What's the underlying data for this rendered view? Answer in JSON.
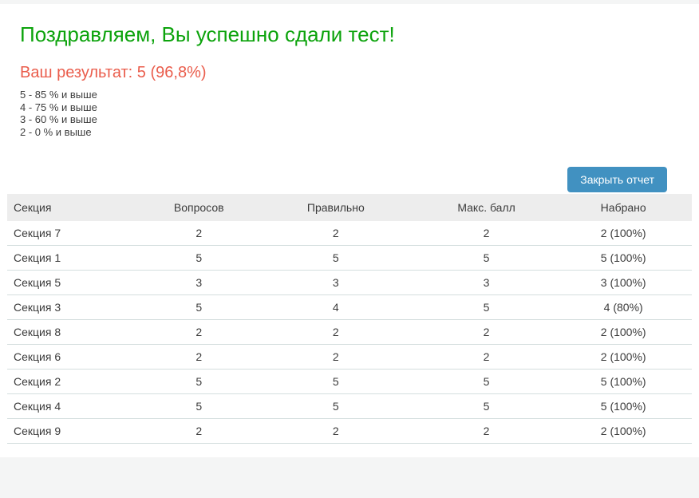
{
  "report": {
    "title": "Поздравляем, Вы успешно сдали тест!",
    "result": "Ваш результат: 5 (96,8%)",
    "grade_scale": [
      "5 - 85 % и выше",
      "4 - 75 % и выше",
      "3 - 60 % и выше",
      "2 - 0 % и выше"
    ],
    "close_button_label": "Закрыть отчет"
  },
  "table": {
    "headers": [
      "Секция",
      "Вопросов",
      "Правильно",
      "Макс. балл",
      "Набрано"
    ],
    "rows": [
      [
        "Секция 7",
        "2",
        "2",
        "2",
        "2 (100%)"
      ],
      [
        "Секция 1",
        "5",
        "5",
        "5",
        "5 (100%)"
      ],
      [
        "Секция 5",
        "3",
        "3",
        "3",
        "3 (100%)"
      ],
      [
        "Секция 3",
        "5",
        "4",
        "5",
        "4 (80%)"
      ],
      [
        "Секция 8",
        "2",
        "2",
        "2",
        "2 (100%)"
      ],
      [
        "Секция 6",
        "2",
        "2",
        "2",
        "2 (100%)"
      ],
      [
        "Секция 2",
        "5",
        "5",
        "5",
        "5 (100%)"
      ],
      [
        "Секция 4",
        "5",
        "5",
        "5",
        "5 (100%)"
      ],
      [
        "Секция 9",
        "2",
        "2",
        "2",
        "2 (100%)"
      ]
    ]
  },
  "colors": {
    "title_green": "#0ca30c",
    "result_red": "#ea5d4c",
    "button_blue": "#4191c1",
    "header_bg": "#ededed",
    "row_border": "#d4dede",
    "page_bg": "#f4f5f5"
  }
}
